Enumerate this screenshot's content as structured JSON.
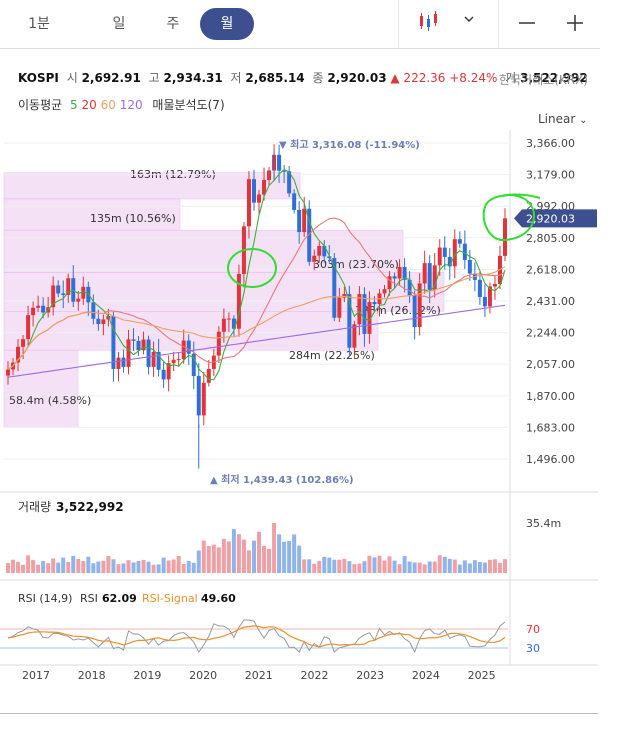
{
  "tabs": [
    {
      "label": "1분",
      "active": false
    },
    {
      "label": "일",
      "active": false
    },
    {
      "label": "주",
      "active": false
    },
    {
      "label": "월",
      "active": true
    }
  ],
  "icons": {
    "chart_type": "candlestick-icon",
    "dropdown": "chevron-down-icon",
    "zoom_out": "minus-icon",
    "zoom_in": "plus-icon"
  },
  "info": {
    "symbol": "KOSPI",
    "open_label": "시",
    "open": "2,692.91",
    "high_label": "고",
    "high": "2,934.31",
    "low_label": "저",
    "low": "2,685.14",
    "close_label": "종",
    "close": "2,920.03",
    "change": "▲ 222.36",
    "change_pct": "+8.24%",
    "volume_label": "거",
    "volume": "3,522,992",
    "exchange": "한국거래소(KRX)"
  },
  "indicators": {
    "ma_label": "이동평균",
    "ma5": "5",
    "ma20": "20",
    "ma60": "60",
    "ma120": "120",
    "profile_label": "매물분석도(7)"
  },
  "scale_label": "Linear",
  "colors": {
    "up": "#e0343a",
    "down": "#2f6fd6",
    "ma5": "#3cae3c",
    "ma20": "#e77a7a",
    "ma60": "#f0a060",
    "ma120": "#9b6be0",
    "profile": "#f3dcf5",
    "accent": "#3d4f8f",
    "annotation": "#33dd33"
  },
  "chart_data": {
    "type": "candlestick",
    "x_ticks": [
      "2017",
      "2018",
      "2019",
      "2020",
      "2021",
      "2022",
      "2023",
      "2024",
      "2025"
    ],
    "y_ticks": [
      "3,366.00",
      "3,179.00",
      "2,992.00",
      "2,805.00",
      "2,618.00",
      "2,431.00",
      "2,244.00",
      "2,057.00",
      "1,870.00",
      "1,683.00",
      "1,496.00"
    ],
    "ylim": [
      1496,
      3366
    ],
    "current_price": "2,920.03",
    "high_marker": "▼ 최고 3,316.08 (-11.94%)",
    "low_marker": "▲ 최저 1,439.43 (102.86%)",
    "monthly_close": [
      2026,
      2067,
      2160,
      2205,
      2347,
      2391,
      2403,
      2363,
      2394,
      2523,
      2476,
      2467,
      2566,
      2427,
      2445,
      2515,
      2423,
      2326,
      2295,
      2322,
      2343,
      2029,
      2096,
      2041,
      2204,
      2195,
      2140,
      2203,
      2041,
      2130,
      2024,
      1967,
      2063,
      2083,
      2087,
      2197,
      2119,
      1987,
      1754,
      1947,
      2029,
      2108,
      2249,
      2326,
      2327,
      2267,
      2591,
      2873,
      3152,
      3013,
      3061,
      3147,
      3203,
      3296,
      3202,
      3199,
      3068,
      2970,
      2839,
      2977,
      2663,
      2699,
      2757,
      2695,
      2685,
      2332,
      2451,
      2472,
      2155,
      2293,
      2472,
      2236,
      2425,
      2412,
      2476,
      2501,
      2577,
      2564,
      2632,
      2556,
      2465,
      2277,
      2535,
      2655,
      2497,
      2642,
      2747,
      2692,
      2636,
      2797,
      2770,
      2674,
      2593,
      2556,
      2455,
      2399,
      2517,
      2532,
      2698,
      2920
    ],
    "volume_profile": [
      {
        "label": "163m (12.79%)"
      },
      {
        "label": "135m (10.56%)"
      },
      {
        "label": "303m (23.70%)"
      },
      {
        "label": "333m (26.12%)"
      },
      {
        "label": "284m (22.25%)"
      },
      {
        "label": "58.4m (4.58%)"
      }
    ],
    "volume": {
      "label": "거래량",
      "value": "3,522,992",
      "axis_tick": "35.4m"
    },
    "rsi": {
      "label": "RSI (14,9)",
      "rsi_label": "RSI",
      "rsi_value": "62.09",
      "signal_label": "RSI-Signal",
      "signal_value": "49.60",
      "levels": [
        70,
        30
      ]
    }
  }
}
